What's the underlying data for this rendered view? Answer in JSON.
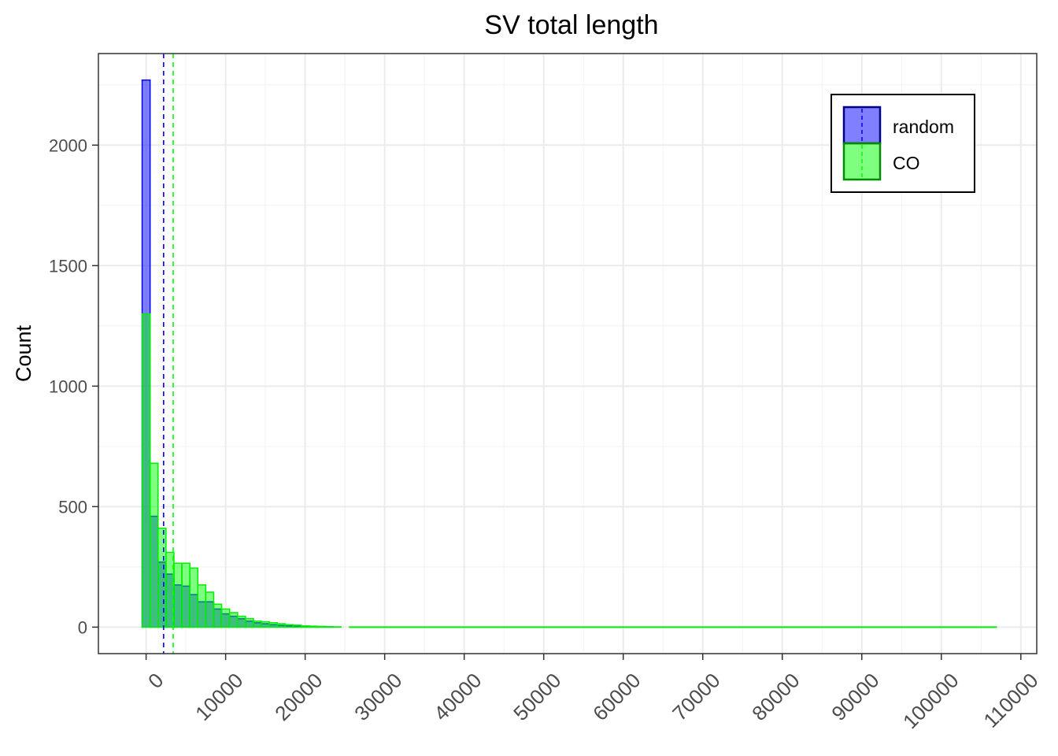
{
  "chart_data": {
    "type": "bar",
    "title": "SV total length",
    "xlabel": "",
    "ylabel": "Count",
    "xlim": [
      -6000,
      112000
    ],
    "ylim": [
      -110,
      2380
    ],
    "bin_width": 1000,
    "x_ticks": [
      0,
      10000,
      20000,
      30000,
      40000,
      50000,
      60000,
      70000,
      80000,
      90000,
      100000,
      110000
    ],
    "x_tick_labels": [
      "0",
      "10000",
      "20000",
      "30000",
      "40000",
      "50000",
      "60000",
      "70000",
      "80000",
      "90000",
      "100000",
      "110000"
    ],
    "y_ticks": [
      0,
      500,
      1000,
      1500,
      2000
    ],
    "y_tick_labels": [
      "0",
      "500",
      "1000",
      "1500",
      "2000"
    ],
    "grid": true,
    "legend_position": "top-right",
    "series": [
      {
        "name": "random",
        "fill": "#0000ff",
        "stroke": "#0000ff",
        "bin_starts": [
          -500,
          500,
          1500,
          2500,
          3500,
          4500,
          5500,
          6500,
          7500,
          8500,
          9500,
          10500,
          11500,
          12500,
          13500,
          14500,
          15500,
          16500,
          17500,
          18500,
          19500,
          20500,
          21500,
          22500,
          23500,
          24500
        ],
        "values": [
          2270,
          460,
          270,
          220,
          175,
          170,
          135,
          105,
          105,
          75,
          55,
          45,
          35,
          25,
          18,
          14,
          10,
          7,
          5,
          4,
          3,
          2,
          1,
          1,
          0,
          0
        ],
        "mean": 2200
      },
      {
        "name": "CO",
        "fill": "#00ff00",
        "stroke": "#00ee00",
        "bin_starts": [
          -500,
          500,
          1500,
          2500,
          3500,
          4500,
          5500,
          6500,
          7500,
          8500,
          9500,
          10500,
          11500,
          12500,
          13500,
          14500,
          15500,
          16500,
          17500,
          18500,
          19500,
          20500,
          21500,
          22500,
          23500,
          24500
        ],
        "values": [
          1300,
          680,
          410,
          310,
          265,
          265,
          245,
          175,
          145,
          95,
          75,
          60,
          45,
          35,
          25,
          22,
          18,
          14,
          10,
          8,
          5,
          4,
          3,
          2,
          1,
          0
        ],
        "mean": 3400,
        "tail_end": 107000
      }
    ]
  }
}
